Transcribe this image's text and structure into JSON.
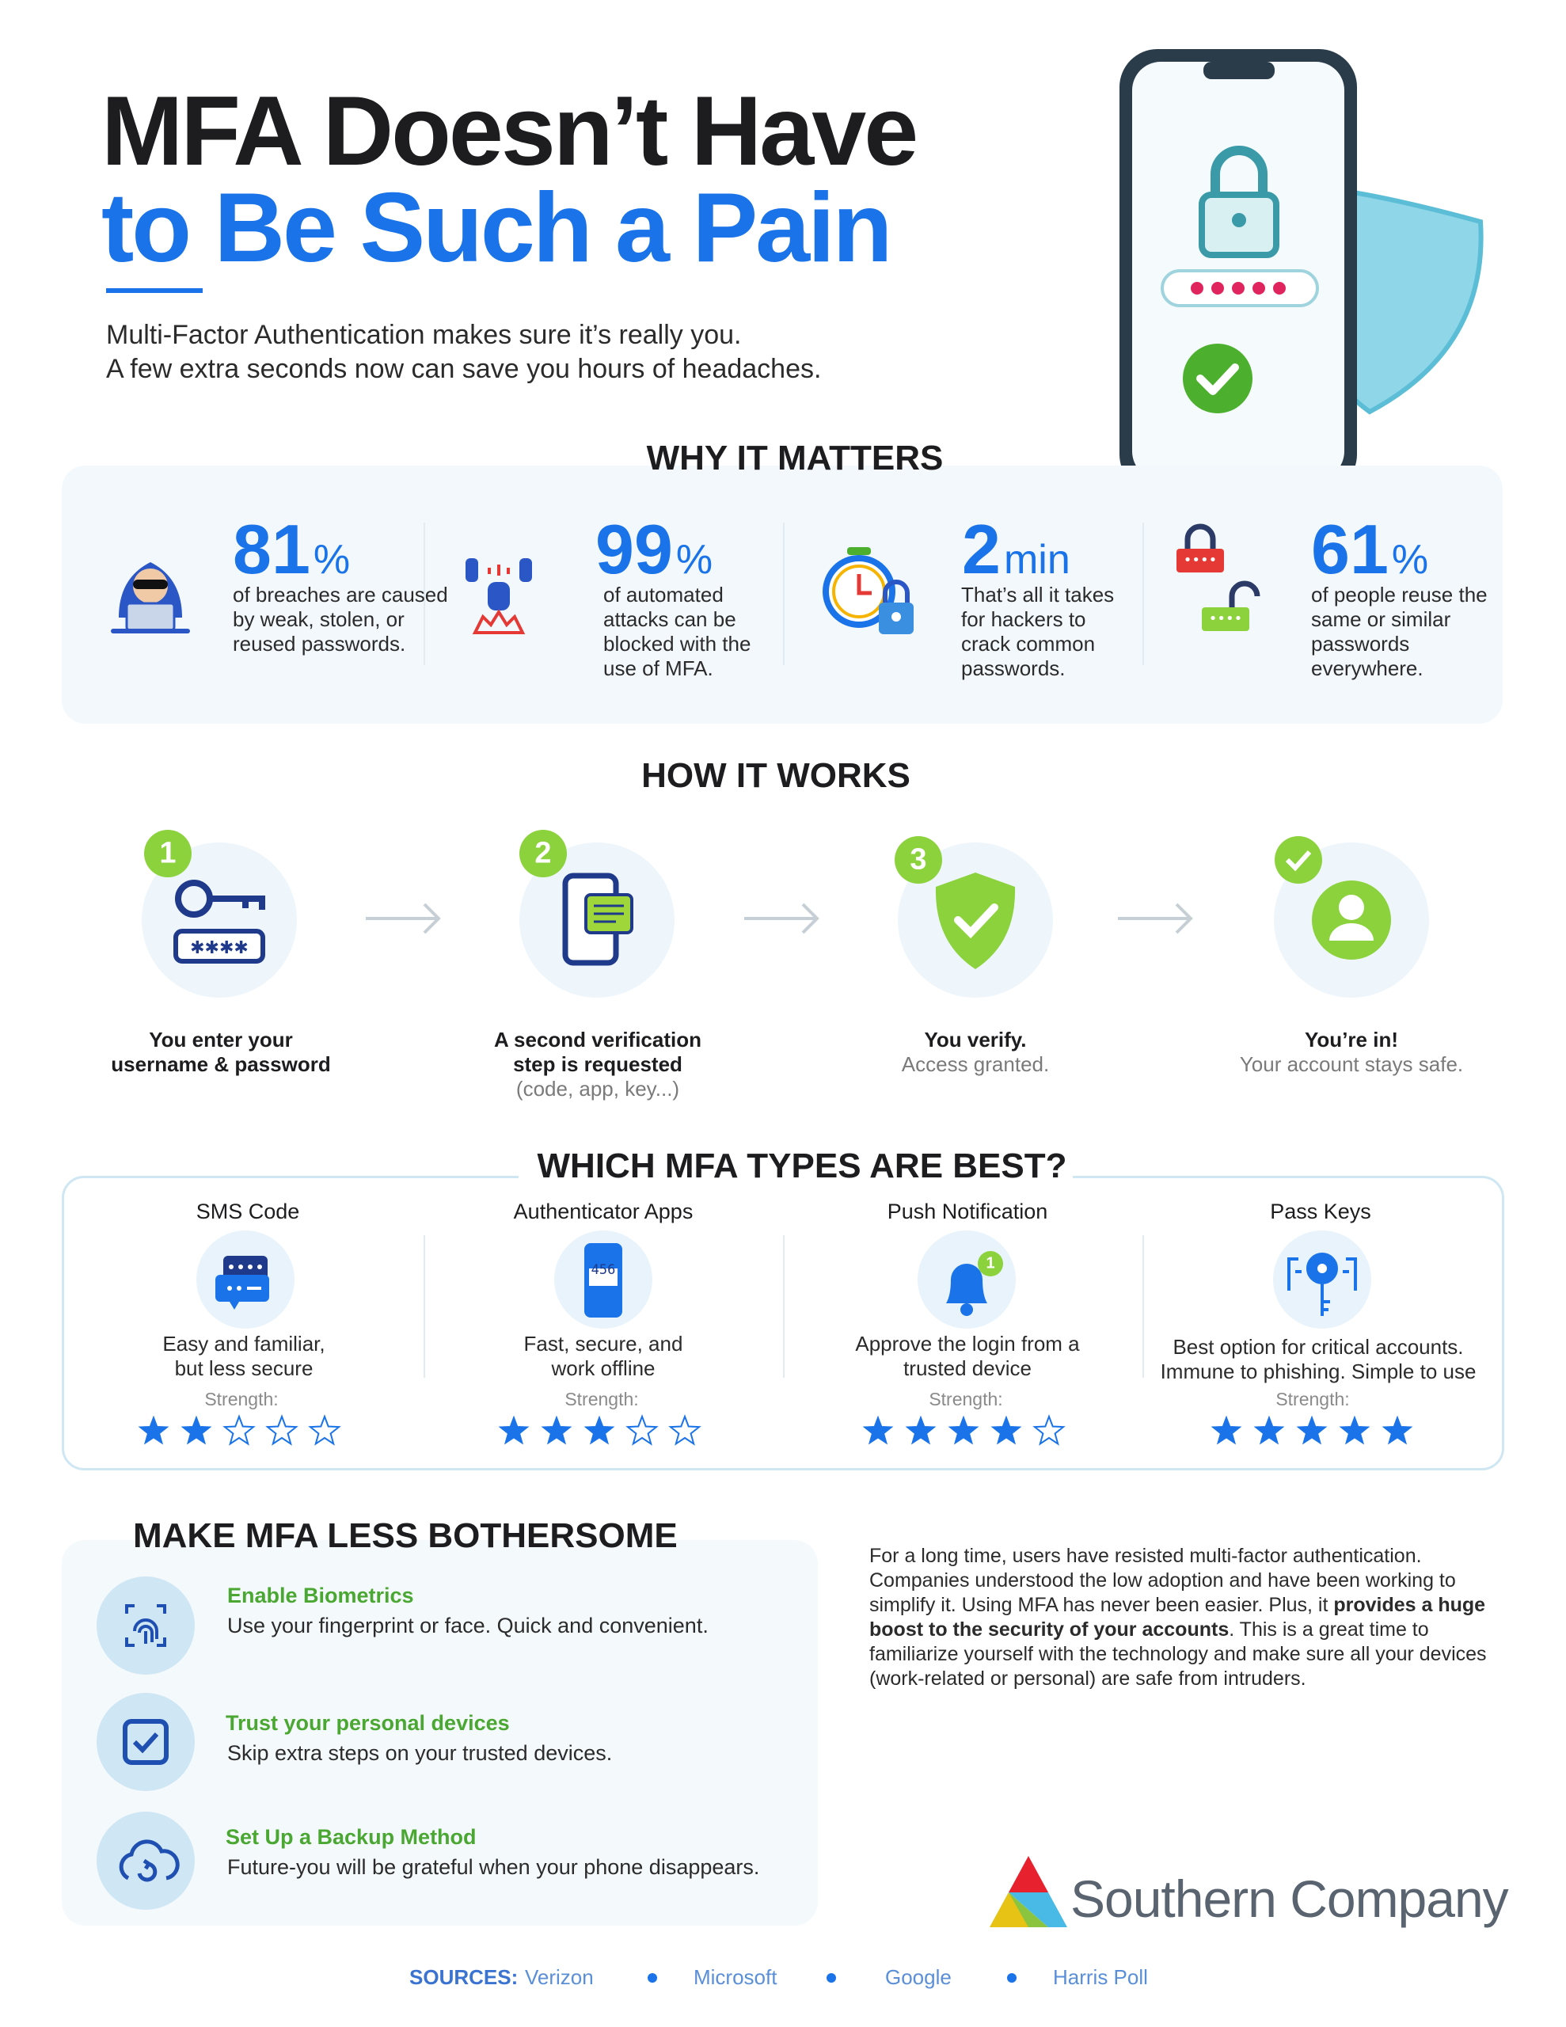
{
  "header": {
    "title_line1": "MFA Doesn’t Have",
    "title_line2": "to Be Such a Pain",
    "subtitle_line1": "Multi-Factor Authentication makes sure it’s really you.",
    "subtitle_line2": "A few extra seconds now can save you hours of headaches."
  },
  "why_it_matters": {
    "heading": "WHY IT MATTERS",
    "stats": [
      {
        "value": "81",
        "unit": "%",
        "text": "of breaches are caused by weak, stolen, or reused passwords."
      },
      {
        "value": "99",
        "unit": "%",
        "text": "of automated attacks can be blocked with the use of MFA."
      },
      {
        "value": "2",
        "unit": "min",
        "text": "That’s all it takes for hackers to crack common passwords."
      },
      {
        "value": "61",
        "unit": "%",
        "text": "of people reuse the same or similar passwords everywhere."
      }
    ]
  },
  "how_it_works": {
    "heading": "HOW IT WORKS",
    "steps": [
      {
        "number": "1",
        "title": "You enter your username & password"
      },
      {
        "number": "2",
        "title": "A second verification step is requested",
        "detail": "(code, app, key...)"
      },
      {
        "number": "3",
        "title": "You verify.",
        "detail": "Access granted."
      },
      {
        "title": "You’re in!",
        "detail": "Your account stays safe."
      }
    ]
  },
  "mfa_types": {
    "heading": "WHICH MFA TYPES ARE BEST?",
    "stars_out_of": 5,
    "types": [
      {
        "name": "SMS Code",
        "text": "Easy and familiar, but less secure",
        "strength_label": "Strength:",
        "strength": 2
      },
      {
        "name": "Authenticator Apps",
        "icon_code": "456",
        "text": "Fast, secure, and work offline",
        "strength_label": "Strength:",
        "strength": 3
      },
      {
        "name": "Push Notification",
        "badge": "1",
        "text": "Approve the login from a trusted device",
        "strength_label": "Strength:",
        "strength": 4
      },
      {
        "name": "Pass Keys",
        "text": "Best option for critical accounts. Immune to phishing. Simple to use",
        "strength_label": "Strength:",
        "strength": 5
      }
    ]
  },
  "tips": {
    "heading": "MAKE MFA LESS BOTHERSOME",
    "items": [
      {
        "title": "Enable Biometrics",
        "text": "Use your fingerprint or face. Quick and convenient."
      },
      {
        "title": "Trust your personal devices",
        "text": "Skip extra steps on your trusted devices."
      },
      {
        "title": "Set Up a Backup Method",
        "text": "Future-you will be grateful when your phone disappears."
      }
    ]
  },
  "paragraph": {
    "before": "For a long time, users have resisted multi-factor authentication. Companies understood the low adoption and have been working to simplify it. Using MFA has never been easier. Plus, it ",
    "bold": "provides a huge boost to the security of your accounts",
    "after": ". This is a great time to familiarize yourself with the technology and make sure all your devices (work-related or personal) are safe from intruders."
  },
  "logo": {
    "text": "Southern Company"
  },
  "sources": {
    "label": "SOURCES:",
    "items": [
      "Verizon",
      "Microsoft",
      "Google",
      "Harris Poll"
    ]
  }
}
